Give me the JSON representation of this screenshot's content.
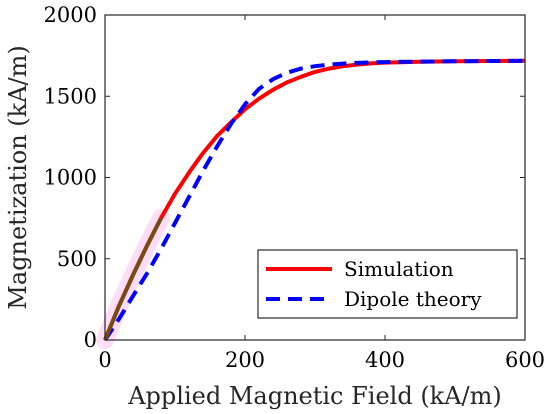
{
  "chart_data": {
    "type": "line",
    "title": "",
    "xlabel": "Applied Magnetic Field (kA/m)",
    "ylabel": "Magnetization (kA/m)",
    "xlim": [
      0,
      600
    ],
    "ylim": [
      0,
      2000
    ],
    "xticks": [
      0,
      200,
      400,
      600
    ],
    "yticks": [
      0,
      500,
      1000,
      1500,
      2000
    ],
    "grid": false,
    "legend_position": "bottom-right",
    "series": [
      {
        "name": "Simulation",
        "color": "#ff0000",
        "style": "solid",
        "x": [
          0,
          20,
          40,
          60,
          80,
          100,
          120,
          140,
          160,
          180,
          200,
          220,
          240,
          260,
          280,
          300,
          320,
          340,
          360,
          380,
          400,
          450,
          500,
          550,
          600
        ],
        "y": [
          0,
          210,
          400,
          580,
          750,
          900,
          1030,
          1150,
          1255,
          1340,
          1420,
          1485,
          1540,
          1585,
          1620,
          1650,
          1670,
          1685,
          1695,
          1702,
          1707,
          1712,
          1715,
          1717,
          1718
        ]
      },
      {
        "name": "Dipole theory",
        "color": "#0000ff",
        "style": "dashed",
        "x": [
          0,
          20,
          40,
          60,
          80,
          100,
          120,
          140,
          160,
          180,
          200,
          220,
          240,
          260,
          280,
          300,
          320,
          340,
          360,
          380,
          400,
          450,
          500,
          550,
          600
        ],
        "y": [
          0,
          130,
          270,
          410,
          560,
          720,
          880,
          1040,
          1190,
          1330,
          1450,
          1545,
          1605,
          1645,
          1670,
          1685,
          1695,
          1701,
          1705,
          1708,
          1710,
          1713,
          1715,
          1717,
          1718
        ]
      }
    ],
    "highlight": {
      "name": "Simulation (low-field segment)",
      "color": "#7a4a14",
      "x": [
        0,
        20,
        40,
        60,
        80
      ],
      "y": [
        0,
        210,
        400,
        580,
        750
      ]
    }
  },
  "legend": {
    "items": [
      {
        "label": "Simulation",
        "color": "#ff0000",
        "style": "solid"
      },
      {
        "label": "Dipole theory",
        "color": "#0000ff",
        "style": "dashed"
      }
    ]
  }
}
